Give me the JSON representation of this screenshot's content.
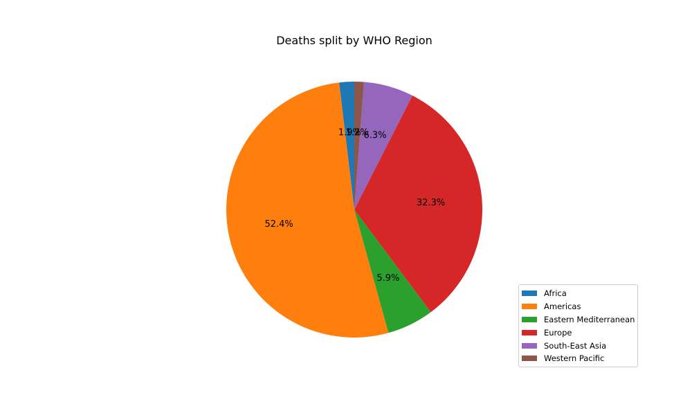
{
  "chart_data": {
    "type": "pie",
    "title": "Deaths split by WHO Region",
    "categories": [
      "Africa",
      "Americas",
      "Eastern Mediterranean",
      "Europe",
      "South-East Asia",
      "Western Pacific"
    ],
    "values": [
      1.9,
      52.4,
      5.9,
      32.3,
      6.3,
      1.2
    ],
    "labels": [
      "1.9%",
      "52.4%",
      "5.9%",
      "32.3%",
      "6.3%",
      "1.2%"
    ],
    "colors": [
      "#1f77b4",
      "#ff7f0e",
      "#2ca02c",
      "#d62728",
      "#9467bd",
      "#8c564b"
    ],
    "start_angle": 90,
    "direction": "counterclockwise",
    "legend": "lower-right"
  }
}
